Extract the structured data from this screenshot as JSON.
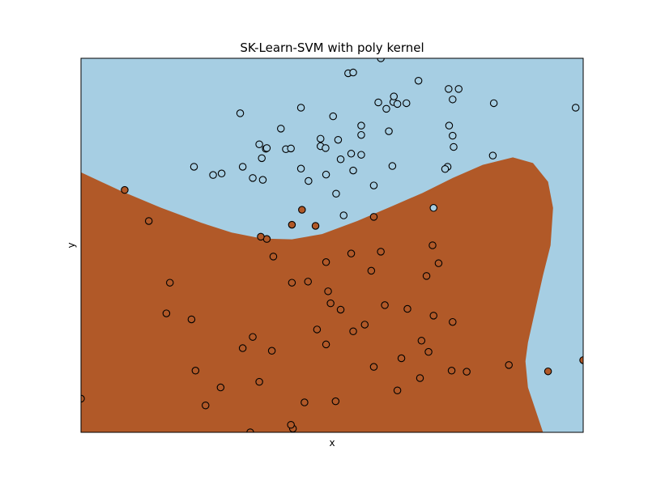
{
  "chart_data": {
    "type": "scatter",
    "title": "SK-Learn-SVM with poly kernel",
    "xlabel": "x",
    "ylabel": "y",
    "xticks": [],
    "yticks": [],
    "grid": false,
    "legend": "none",
    "xlim": [
      0,
      100
    ],
    "ylim": [
      0,
      100
    ],
    "colors": {
      "class_0": "#a6cee3",
      "class_1": "#b15928",
      "point_edge": "#000000",
      "axes_frame": "#000000"
    },
    "decision_boundary": [
      [
        0,
        69.5
      ],
      [
        8,
        64.5
      ],
      [
        16,
        60
      ],
      [
        24,
        56
      ],
      [
        30,
        53.4
      ],
      [
        36,
        51.8
      ],
      [
        42,
        51.6
      ],
      [
        48,
        53
      ],
      [
        55,
        56.5
      ],
      [
        62,
        60.5
      ],
      [
        68,
        64
      ],
      [
        74,
        68
      ],
      [
        80,
        71.5
      ],
      [
        86,
        73.5
      ],
      [
        90,
        72
      ],
      [
        93,
        67
      ],
      [
        94,
        60
      ],
      [
        93.5,
        50
      ],
      [
        92,
        42
      ],
      [
        91,
        36
      ],
      [
        90,
        30
      ],
      [
        89,
        24
      ],
      [
        88.5,
        19
      ],
      [
        89,
        12
      ],
      [
        91,
        4
      ],
      [
        92,
        0
      ]
    ],
    "series": [
      {
        "class": 0,
        "x": [
          59.7,
          53.2,
          54.2,
          67.2,
          75.2,
          73.2,
          74.0,
          60.8,
          59.2,
          62.2,
          64.8,
          82.2,
          47.7,
          39.8,
          36.8,
          40.8,
          41.8,
          43.8,
          31.7,
          22.5,
          51.7,
          34.2,
          48.8,
          36.2,
          36.0,
          45.3,
          54.2,
          55.8,
          55.8,
          53.8,
          62.0,
          82.0,
          73.3,
          74.2,
          73.0,
          50.8,
          58.3,
          61.3,
          63.0,
          62.3,
          55.8,
          51.2,
          26.3,
          28.0,
          43.8,
          98.5,
          35.5,
          70.2,
          48.7,
          37.0,
          32.2,
          72.5,
          52.3,
          74.0,
          47.7,
          50.2
        ],
        "y": [
          100.0,
          96.0,
          96.2,
          94.0,
          91.8,
          91.8,
          89.0,
          86.5,
          88.2,
          88.3,
          88.0,
          88.0,
          76.5,
          81.2,
          75.8,
          75.7,
          75.9,
          86.8,
          85.3,
          71.0,
          73.0,
          68.0,
          68.9,
          67.5,
          73.3,
          67.2,
          70.0,
          82.0,
          74.2,
          74.5,
          71.2,
          74.0,
          82.0,
          76.3,
          71.0,
          63.8,
          66.0,
          80.5,
          87.8,
          89.8,
          79.5,
          78.2,
          68.8,
          69.2,
          70.5,
          86.8,
          77.0,
          60.0,
          76.0,
          76.0,
          71.0,
          70.4,
          58.0,
          79.3,
          78.5,
          84.5
        ]
      },
      {
        "class": 1,
        "x": [
          24.8,
          44.5,
          50.7,
          63.0,
          69.2,
          73.8,
          85.2,
          93.0,
          67.5,
          35.5,
          100.0,
          32.2,
          22.8,
          27.8,
          58.3,
          76.8,
          38.0,
          47.0,
          49.7,
          70.2,
          67.8,
          34.2,
          63.8,
          54.2,
          42.0,
          49.2,
          48.8,
          45.2,
          57.8,
          60.5,
          74.0,
          58.3,
          46.7,
          42.0,
          37.0,
          53.8,
          59.7,
          44.0,
          35.8,
          38.3,
          13.5,
          8.7,
          0.0,
          17.7,
          17.0,
          22.0,
          33.7,
          42.2,
          41.8,
          48.8,
          51.7,
          56.5,
          65.0,
          68.8,
          71.2,
          70.0
        ],
        "y": [
          7.2,
          8.0,
          8.3,
          11.2,
          21.5,
          16.5,
          18.0,
          16.3,
          14.5,
          13.5,
          19.3,
          22.5,
          16.5,
          12.0,
          17.5,
          16.2,
          21.8,
          27.5,
          34.5,
          31.2,
          24.5,
          25.5,
          19.8,
          27.0,
          40.0,
          37.7,
          45.5,
          40.3,
          43.2,
          34.0,
          29.5,
          57.6,
          55.2,
          55.5,
          51.7,
          47.8,
          48.3,
          59.5,
          52.3,
          47.0,
          56.5,
          64.8,
          9.0,
          40.0,
          31.8,
          30.2,
          0.0,
          1.0,
          2.0,
          23.5,
          32.8,
          28.8,
          33.0,
          41.8,
          45.2,
          50.0
        ]
      }
    ]
  }
}
